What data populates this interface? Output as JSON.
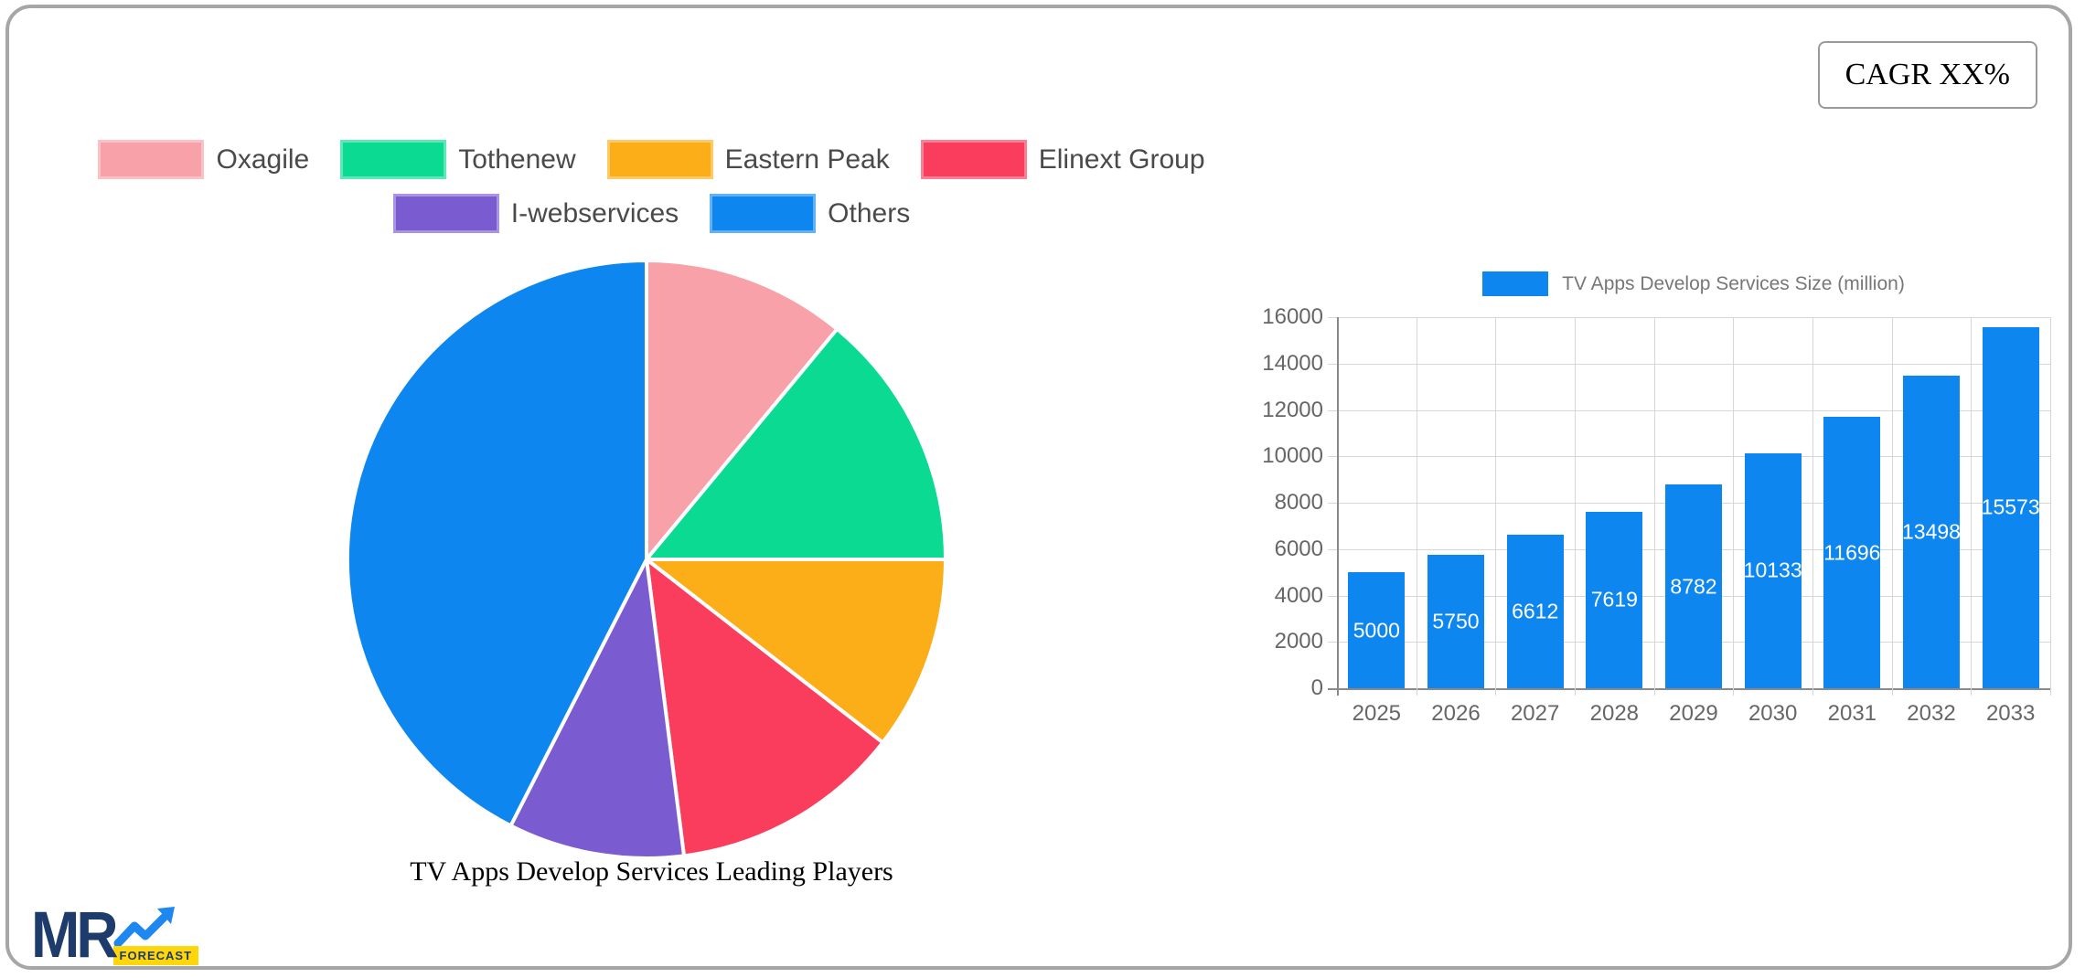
{
  "cagr": {
    "label": "CAGR XX%"
  },
  "logo": {
    "mr": "MR",
    "forecast": "FORECAST"
  },
  "chart_data": [
    {
      "type": "pie",
      "title": "TV Apps Develop Services Leading Players",
      "labels": [
        "Oxagile",
        "Tothenew",
        "Eastern Peak",
        "Elinext Group",
        "I-webservices",
        "Others"
      ],
      "values": [
        11,
        14,
        10.5,
        12.5,
        9.5,
        42.5
      ],
      "colors": [
        "#f8a1a8",
        "#0bdb92",
        "#fbae17",
        "#fb3d5d",
        "#7a5bd0",
        "#0e86f0"
      ],
      "units": "percent share (estimated from slice angles)",
      "legend_position": "top",
      "start_angle": "12 o'clock, clockwise"
    },
    {
      "type": "bar",
      "series_label": "TV Apps Develop Services Size (million)",
      "categories": [
        "2025",
        "2026",
        "2027",
        "2028",
        "2029",
        "2030",
        "2031",
        "2032",
        "2033"
      ],
      "values": [
        5000,
        5750,
        6612,
        7619,
        8782,
        10133,
        11696,
        13498,
        15573
      ],
      "bar_color": "#0e86f0",
      "value_label_color": "#ffffff",
      "ylim": [
        0,
        16000
      ],
      "ytick_step": 2000,
      "grid": true,
      "legend_position": "top"
    }
  ],
  "colors": {
    "card_border": "#a6a6a6",
    "legend_text": "#4a4a4a",
    "axis_text": "#666666",
    "grid_line": "#d6d6d6",
    "axis_line": "#8a8a8a",
    "logo_navy": "#1d3c6b",
    "logo_yellow": "#ffd60a",
    "logo_arrow_blue": "#1e88f0"
  }
}
